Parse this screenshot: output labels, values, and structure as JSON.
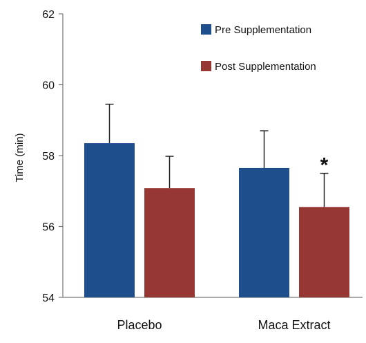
{
  "chart_data": {
    "type": "bar",
    "title": "",
    "xlabel": "",
    "ylabel": "Time (min)",
    "ylim": [
      54,
      62
    ],
    "yticks": [
      "54",
      "56",
      "58",
      "60",
      "62"
    ],
    "categories": [
      "Placebo",
      "Maca Extract"
    ],
    "series": [
      {
        "name": "Pre Supplementation",
        "color": "#1f4e8c",
        "values": [
          58.35,
          57.65
        ],
        "errors": [
          1.1,
          1.05
        ]
      },
      {
        "name": "Post Supplementation",
        "color": "#963734",
        "values": [
          57.08,
          56.55
        ],
        "errors": [
          0.9,
          0.95
        ]
      }
    ],
    "annotations": [
      {
        "text": "*",
        "category": "Maca Extract",
        "series": "Post Supplementation"
      }
    ],
    "grid": false,
    "legend": "top-right",
    "error_bars": "upper"
  }
}
